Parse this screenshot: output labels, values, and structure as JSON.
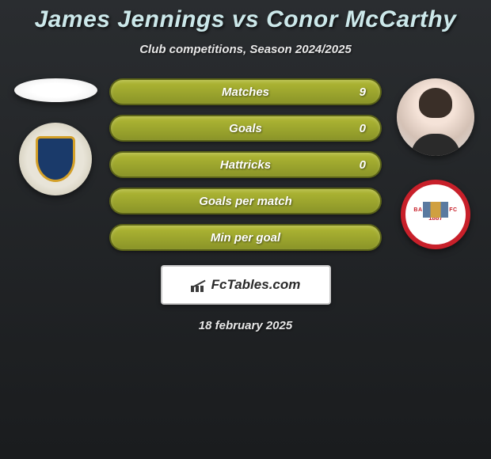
{
  "header": {
    "player1": "James Jennings",
    "vs": "vs",
    "player2": "Conor McCarthy",
    "subtitle": "Club competitions, Season 2024/2025"
  },
  "stats": [
    {
      "label": "Matches",
      "value": "9"
    },
    {
      "label": "Goals",
      "value": "0"
    },
    {
      "label": "Hattricks",
      "value": "0"
    },
    {
      "label": "Goals per match",
      "value": ""
    },
    {
      "label": "Min per goal",
      "value": ""
    }
  ],
  "crest_right": {
    "top_text": "BARNSLEY FC",
    "year": "1887"
  },
  "brand": {
    "text": "FcTables.com"
  },
  "date": "18 february 2025",
  "colors": {
    "bar_bg": "#a0a830",
    "bar_border": "#5a6218",
    "title_color": "#cce8ea",
    "crest_right_border": "#c8202a"
  }
}
